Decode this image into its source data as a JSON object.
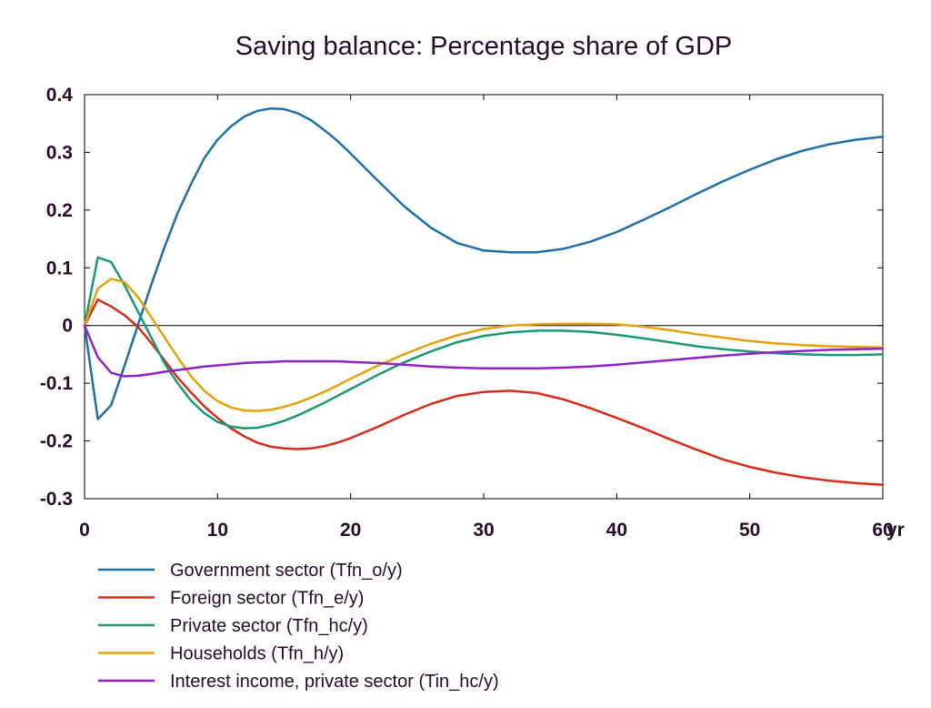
{
  "chart_data": {
    "type": "line",
    "title": "Saving balance: Percentage share of GDP",
    "xlabel": "",
    "ylabel": "",
    "x_unit_label": "yr",
    "xlim": [
      0,
      60
    ],
    "ylim": [
      -0.3,
      0.4
    ],
    "x_ticks": [
      0,
      10,
      20,
      30,
      40,
      50,
      60
    ],
    "x_tick_labels": [
      "0",
      "10",
      "20",
      "30",
      "40",
      "50",
      "60"
    ],
    "y_ticks": [
      -0.3,
      -0.2,
      -0.1,
      0,
      0.1,
      0.2,
      0.3,
      0.4
    ],
    "y_tick_labels": [
      "-0.3",
      "-0.2",
      "-0.1",
      "0",
      "0.1",
      "0.2",
      "0.3",
      "0.4"
    ],
    "grid": false,
    "zero_line": true,
    "legend_position": "bottom",
    "x": [
      0,
      1,
      2,
      3,
      4,
      5,
      6,
      7,
      8,
      9,
      10,
      11,
      12,
      13,
      14,
      15,
      16,
      17,
      18,
      19,
      20,
      22,
      24,
      26,
      28,
      30,
      32,
      34,
      36,
      38,
      40,
      42,
      44,
      46,
      48,
      50,
      52,
      54,
      56,
      58,
      60
    ],
    "series": [
      {
        "name": "Government sector (Tfn_o/y)",
        "color": "#1f6fa8",
        "values": [
          0,
          -0.162,
          -0.138,
          -0.07,
          0.0,
          0.07,
          0.135,
          0.195,
          0.245,
          0.29,
          0.322,
          0.345,
          0.362,
          0.372,
          0.376,
          0.375,
          0.368,
          0.356,
          0.339,
          0.32,
          0.298,
          0.252,
          0.207,
          0.17,
          0.143,
          0.13,
          0.127,
          0.127,
          0.133,
          0.145,
          0.162,
          0.183,
          0.205,
          0.228,
          0.25,
          0.27,
          0.288,
          0.303,
          0.314,
          0.322,
          0.327
        ]
      },
      {
        "name": "Foreign sector (Tfn_e/y)",
        "color": "#d42d1c",
        "values": [
          0,
          0.045,
          0.033,
          0.018,
          -0.002,
          -0.03,
          -0.06,
          -0.09,
          -0.116,
          -0.14,
          -0.16,
          -0.178,
          -0.192,
          -0.203,
          -0.21,
          -0.213,
          -0.214,
          -0.213,
          -0.209,
          -0.203,
          -0.195,
          -0.176,
          -0.155,
          -0.136,
          -0.122,
          -0.115,
          -0.113,
          -0.117,
          -0.128,
          -0.143,
          -0.16,
          -0.178,
          -0.197,
          -0.215,
          -0.232,
          -0.245,
          -0.255,
          -0.263,
          -0.269,
          -0.273,
          -0.276
        ]
      },
      {
        "name": "Private sector (Tfn_hc/y)",
        "color": "#1b9977",
        "values": [
          0,
          0.118,
          0.11,
          0.07,
          0.025,
          -0.02,
          -0.065,
          -0.1,
          -0.13,
          -0.152,
          -0.167,
          -0.175,
          -0.178,
          -0.177,
          -0.172,
          -0.165,
          -0.156,
          -0.145,
          -0.134,
          -0.122,
          -0.11,
          -0.086,
          -0.064,
          -0.045,
          -0.029,
          -0.018,
          -0.012,
          -0.009,
          -0.009,
          -0.011,
          -0.016,
          -0.022,
          -0.029,
          -0.036,
          -0.041,
          -0.045,
          -0.048,
          -0.05,
          -0.051,
          -0.051,
          -0.05
        ]
      },
      {
        "name": "Households (Tfn_h/y)",
        "color": "#e4a20e",
        "values": [
          0,
          0.064,
          0.081,
          0.075,
          0.05,
          0.015,
          -0.02,
          -0.055,
          -0.088,
          -0.113,
          -0.131,
          -0.142,
          -0.147,
          -0.148,
          -0.146,
          -0.141,
          -0.134,
          -0.125,
          -0.115,
          -0.104,
          -0.092,
          -0.07,
          -0.05,
          -0.032,
          -0.017,
          -0.006,
          0.0,
          0.002,
          0.003,
          0.003,
          0.002,
          -0.002,
          -0.008,
          -0.015,
          -0.021,
          -0.027,
          -0.031,
          -0.034,
          -0.036,
          -0.037,
          -0.038
        ]
      },
      {
        "name": "Interest income, private sector (Tin_hc/y)",
        "color": "#8e24c4",
        "values": [
          0,
          -0.055,
          -0.082,
          -0.088,
          -0.087,
          -0.084,
          -0.08,
          -0.077,
          -0.074,
          -0.071,
          -0.069,
          -0.067,
          -0.065,
          -0.064,
          -0.063,
          -0.062,
          -0.062,
          -0.062,
          -0.062,
          -0.062,
          -0.063,
          -0.065,
          -0.068,
          -0.071,
          -0.073,
          -0.074,
          -0.074,
          -0.074,
          -0.073,
          -0.071,
          -0.068,
          -0.064,
          -0.06,
          -0.056,
          -0.052,
          -0.049,
          -0.046,
          -0.044,
          -0.042,
          -0.041,
          -0.04
        ]
      }
    ]
  }
}
